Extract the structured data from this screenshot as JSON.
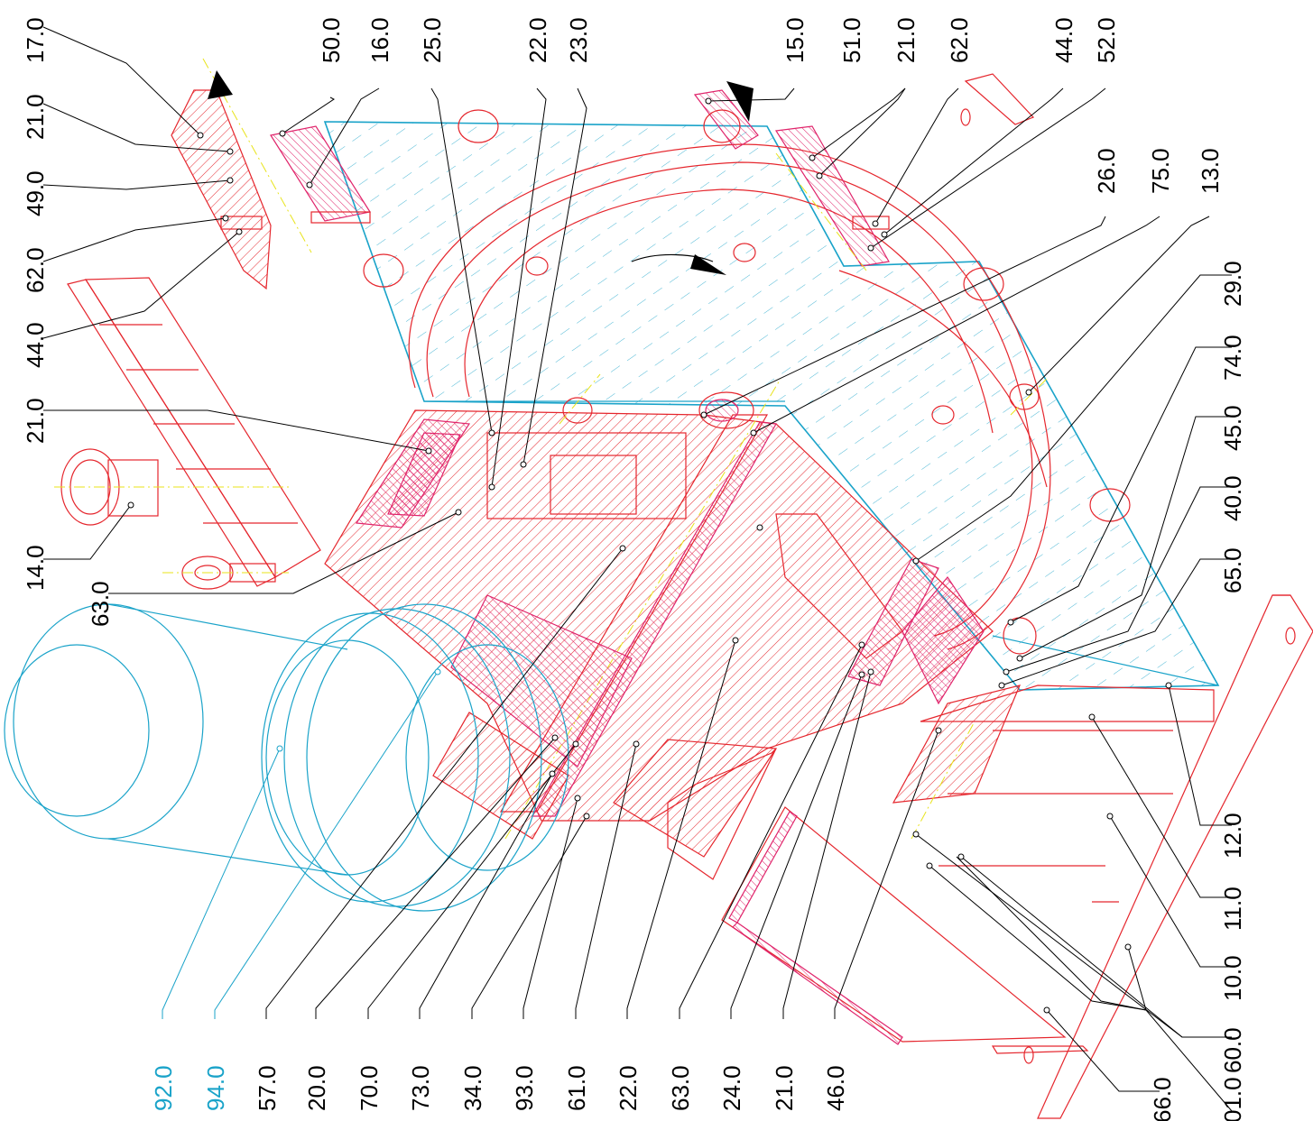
{
  "labels": {
    "top": [
      "17.0",
      "50.0",
      "16.0",
      "25.0",
      "22.0",
      "23.0",
      "15.0",
      "51.0",
      "21.0",
      "62.0",
      "44.0",
      "52.0"
    ],
    "top_right": [
      "26.0",
      "75.0",
      "13.0"
    ],
    "left": [
      "21.0",
      "49.0",
      "62.0",
      "44.0",
      "21.0",
      "14.0",
      "63.0"
    ],
    "right": [
      "29.0",
      "74.0",
      "45.0",
      "40.0",
      "65.0",
      "12.0",
      "11.0",
      "10.0",
      "60.0",
      "66.0",
      "01.0"
    ],
    "bottom": [
      "92.0",
      "94.0",
      "57.0",
      "20.0",
      "70.0",
      "73.0",
      "34.0",
      "93.0",
      "61.0",
      "22.0",
      "63.0",
      "24.0",
      "21.0",
      "46.0"
    ]
  },
  "colors": {
    "label_text": "#000000",
    "label_cyan": "#1aa3c9",
    "section_red": "#e5262d",
    "section_magenta": "#e0246b",
    "motor_cyan": "#1aa3c9",
    "axis_yellow": "#e8e31a"
  }
}
